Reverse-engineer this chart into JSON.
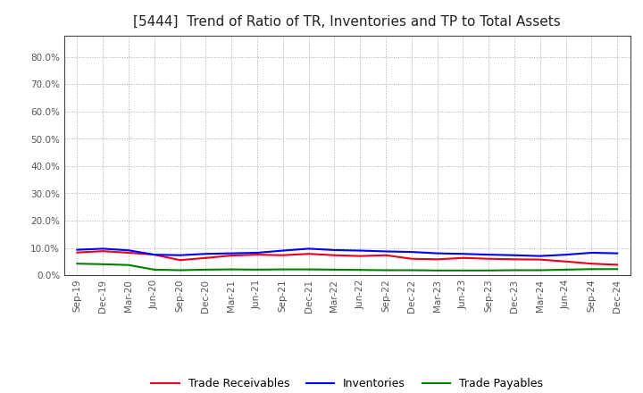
{
  "title": "[5444]  Trend of Ratio of TR, Inventories and TP to Total Assets",
  "title_fontsize": 11,
  "background_color": "#ffffff",
  "plot_bg_color": "#ffffff",
  "ylim": [
    0.0,
    0.88
  ],
  "yticks": [
    0.0,
    0.1,
    0.2,
    0.3,
    0.4,
    0.5,
    0.6,
    0.7,
    0.8
  ],
  "xlabels": [
    "Sep-19",
    "Dec-19",
    "Mar-20",
    "Jun-20",
    "Sep-20",
    "Dec-20",
    "Mar-21",
    "Jun-21",
    "Sep-21",
    "Dec-21",
    "Mar-22",
    "Jun-22",
    "Sep-22",
    "Dec-22",
    "Mar-23",
    "Jun-23",
    "Sep-23",
    "Dec-23",
    "Mar-24",
    "Jun-24",
    "Sep-24",
    "Dec-24"
  ],
  "trade_receivables": [
    0.083,
    0.088,
    0.082,
    0.075,
    0.055,
    0.063,
    0.072,
    0.075,
    0.073,
    0.078,
    0.073,
    0.07,
    0.073,
    0.06,
    0.058,
    0.063,
    0.06,
    0.058,
    0.057,
    0.05,
    0.042,
    0.038
  ],
  "inventories": [
    0.093,
    0.097,
    0.091,
    0.075,
    0.073,
    0.078,
    0.08,
    0.082,
    0.09,
    0.097,
    0.092,
    0.09,
    0.087,
    0.085,
    0.08,
    0.078,
    0.075,
    0.073,
    0.07,
    0.075,
    0.082,
    0.08
  ],
  "trade_payables": [
    0.042,
    0.04,
    0.037,
    0.02,
    0.018,
    0.02,
    0.021,
    0.02,
    0.021,
    0.021,
    0.02,
    0.019,
    0.018,
    0.018,
    0.017,
    0.017,
    0.017,
    0.018,
    0.018,
    0.02,
    0.022,
    0.022
  ],
  "color_tr": "#e8001c",
  "color_inv": "#0000ff",
  "color_tp": "#008000",
  "legend_labels": [
    "Trade Receivables",
    "Inventories",
    "Trade Payables"
  ],
  "line_width": 1.5,
  "grid_color": "#aaaaaa",
  "tick_color": "#555555"
}
